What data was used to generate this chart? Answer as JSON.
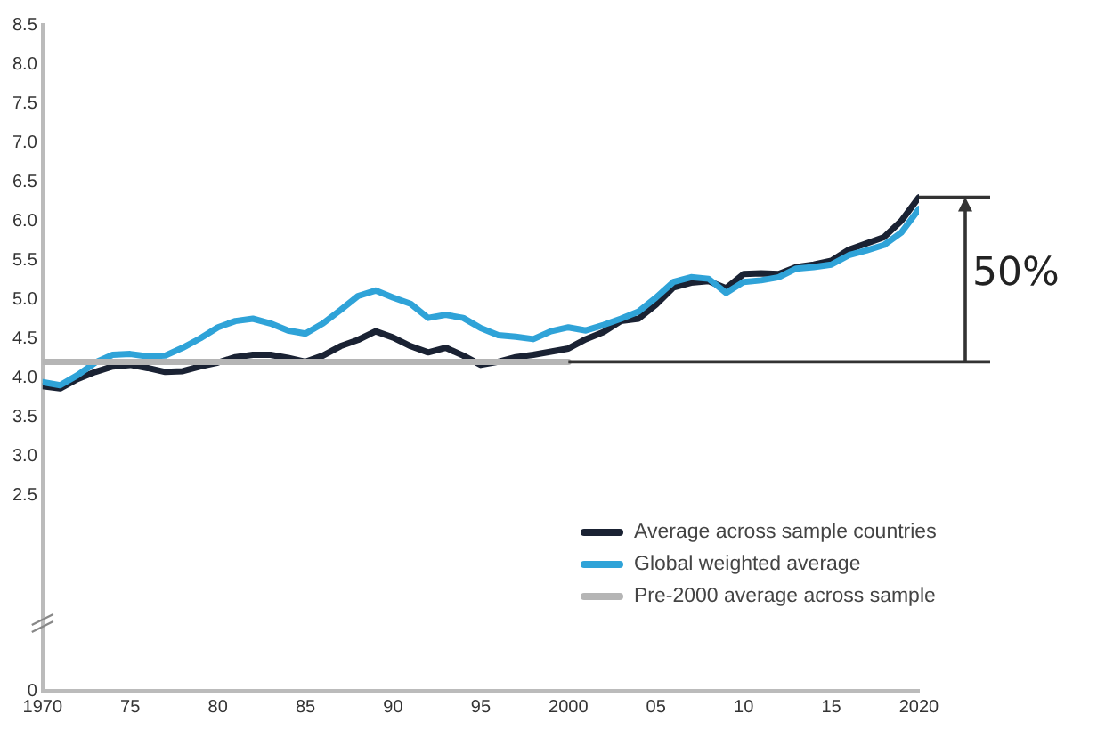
{
  "chart_data": {
    "type": "line",
    "x": [
      1970,
      1971,
      1972,
      1973,
      1974,
      1975,
      1976,
      1977,
      1978,
      1979,
      1980,
      1981,
      1982,
      1983,
      1984,
      1985,
      1986,
      1987,
      1988,
      1989,
      1990,
      1991,
      1992,
      1993,
      1994,
      1995,
      1996,
      1997,
      1998,
      1999,
      2000,
      2001,
      2002,
      2003,
      2004,
      2005,
      2006,
      2007,
      2008,
      2009,
      2010,
      2011,
      2012,
      2013,
      2014,
      2015,
      2016,
      2017,
      2018,
      2019,
      2020
    ],
    "series": [
      {
        "name": "Average across sample countries",
        "color": "#1a2233",
        "values": [
          3.89,
          3.86,
          3.98,
          4.07,
          4.14,
          4.16,
          4.12,
          4.07,
          4.08,
          4.14,
          4.19,
          4.26,
          4.29,
          4.29,
          4.25,
          4.2,
          4.28,
          4.4,
          4.48,
          4.59,
          4.51,
          4.4,
          4.32,
          4.38,
          4.28,
          4.16,
          4.2,
          4.26,
          4.29,
          4.33,
          4.37,
          4.49,
          4.58,
          4.72,
          4.75,
          4.93,
          5.15,
          5.21,
          5.23,
          5.14,
          5.32,
          5.33,
          5.32,
          5.41,
          5.44,
          5.49,
          5.63,
          5.71,
          5.79,
          6.0,
          6.3
        ]
      },
      {
        "name": "Global weighted average",
        "color": "#2fa3d8",
        "values": [
          3.94,
          3.9,
          4.03,
          4.19,
          4.29,
          4.3,
          4.27,
          4.28,
          4.38,
          4.5,
          4.64,
          4.72,
          4.75,
          4.69,
          4.6,
          4.56,
          4.69,
          4.86,
          5.04,
          5.11,
          5.02,
          4.94,
          4.76,
          4.8,
          4.76,
          4.63,
          4.54,
          4.52,
          4.49,
          4.59,
          4.64,
          4.6,
          4.67,
          4.75,
          4.84,
          5.02,
          5.22,
          5.28,
          5.26,
          5.08,
          5.22,
          5.24,
          5.28,
          5.39,
          5.41,
          5.44,
          5.56,
          5.62,
          5.69,
          5.85,
          6.15
        ]
      },
      {
        "name": "Pre-2000 average across sample",
        "color": "#b5b5b5",
        "x": [
          1970,
          2000
        ],
        "values": [
          4.2,
          4.2
        ]
      }
    ],
    "xlim": [
      1970,
      2020
    ],
    "xticks": [
      {
        "value": 1970,
        "label": "1970"
      },
      {
        "value": 1975,
        "label": "75"
      },
      {
        "value": 1980,
        "label": "80"
      },
      {
        "value": 1985,
        "label": "85"
      },
      {
        "value": 1990,
        "label": "90"
      },
      {
        "value": 1995,
        "label": "95"
      },
      {
        "value": 2000,
        "label": "2000"
      },
      {
        "value": 2005,
        "label": "05"
      },
      {
        "value": 2010,
        "label": "10"
      },
      {
        "value": 2015,
        "label": "15"
      },
      {
        "value": 2020,
        "label": "2020"
      }
    ],
    "ylim": [
      0,
      8.5
    ],
    "yticks": [
      0,
      2.5,
      {
        "value": 3,
        "label": "3.0"
      },
      3.5,
      {
        "value": 4,
        "label": "4.0"
      },
      4.5,
      {
        "value": 5,
        "label": "5.0"
      },
      5.5,
      {
        "value": 6,
        "label": "6.0"
      },
      6.5,
      {
        "value": 7,
        "label": "7.0"
      },
      7.5,
      {
        "value": 8,
        "label": "8.0"
      },
      8.5
    ],
    "annotations": [
      "50%"
    ],
    "ref_lines": [
      {
        "axis": "y",
        "value": 4.2,
        "color": "#333333"
      }
    ],
    "grid": false,
    "legend": "bottom right",
    "marker": "none",
    "line_style": "solid"
  }
}
